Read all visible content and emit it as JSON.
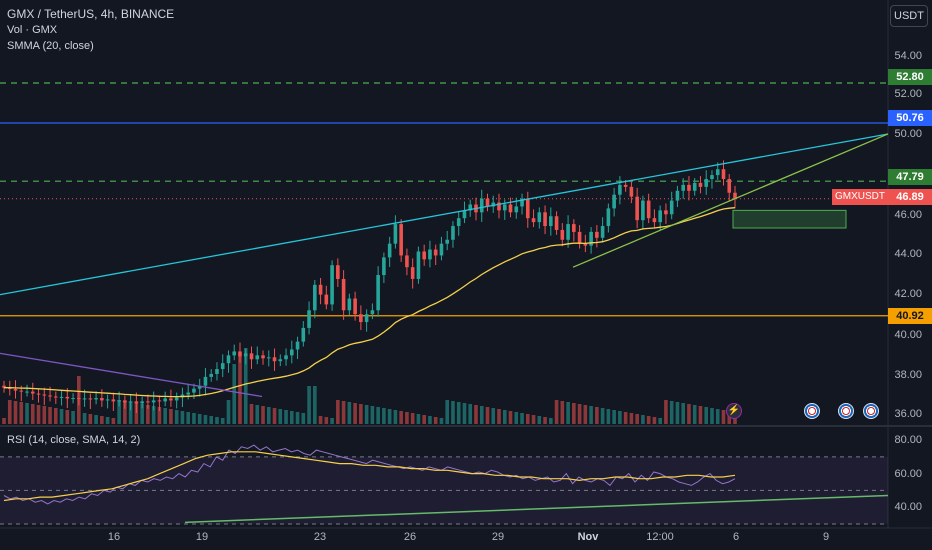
{
  "legend": {
    "symbol": "GMX / TetherUS, 4h, BINANCE",
    "volume": "Vol · GMX",
    "smma": "SMMA (20, close)"
  },
  "rsi_legend": "RSI (14, close, SMA, 14, 2)",
  "unit": "USDT",
  "price_axis": [
    "54.00",
    "52.00",
    "50.00",
    "46.00",
    "44.00",
    "42.00",
    "40.00",
    "38.00",
    "36.00"
  ],
  "rsi_axis": [
    "80.00",
    "60.00",
    "40.00"
  ],
  "time_axis": [
    "16",
    "19",
    "23",
    "26",
    "29",
    "Nov",
    "12:00",
    "6",
    "9"
  ],
  "levels": {
    "green_top": "52.80",
    "blue": "50.76",
    "green_mid": "47.79",
    "orange": "40.92"
  },
  "current": {
    "symbol": "GMXUSDT",
    "price": "46.89"
  },
  "colors": {
    "background": "#131722",
    "up": "#26a69a",
    "down": "#ef5350",
    "blue_level": "#2962ff",
    "orange_level": "#f59f00",
    "green_dash": "#4caf50",
    "cyan_trend": "#26c6da",
    "green_trend": "#8bc34a",
    "smma": "#f5d04c",
    "rsi": "#9575cd"
  },
  "chart_data": {
    "type": "candlestick",
    "price_range": [
      35.6,
      55.2
    ],
    "rsi_range": [
      30,
      86
    ],
    "closes": [
      37.25,
      37.18,
      37.1,
      37.05,
      37.05,
      36.95,
      36.9,
      36.85,
      36.8,
      36.75,
      36.78,
      36.7,
      36.72,
      36.68,
      36.7,
      36.65,
      36.72,
      36.6,
      36.65,
      36.55,
      36.6,
      36.5,
      36.55,
      36.45,
      36.55,
      36.5,
      36.6,
      36.55,
      36.7,
      36.6,
      36.75,
      36.9,
      37.0,
      37.2,
      37.35,
      37.8,
      37.95,
      38.2,
      38.5,
      38.9,
      39.1,
      38.85,
      39.0,
      38.7,
      38.9,
      38.75,
      38.8,
      38.6,
      38.7,
      38.9,
      39.2,
      39.6,
      40.3,
      41.2,
      42.5,
      42.0,
      41.5,
      43.5,
      42.8,
      41.2,
      41.8,
      41.0,
      40.6,
      41.0,
      41.2,
      43.0,
      43.9,
      44.6,
      45.6,
      44.0,
      43.4,
      42.8,
      44.2,
      43.8,
      44.3,
      44.0,
      44.6,
      44.8,
      45.5,
      45.9,
      46.3,
      46.6,
      46.2,
      46.9,
      46.5,
      46.7,
      46.3,
      46.6,
      46.2,
      46.5,
      46.9,
      45.9,
      45.7,
      46.2,
      45.5,
      46.0,
      45.3,
      44.8,
      45.6,
      45.2,
      44.6,
      44.5,
      45.2,
      44.9,
      45.5,
      46.4,
      47.1,
      47.6,
      47.5,
      47.0,
      45.8,
      46.8,
      45.9,
      45.7,
      46.3,
      46.1,
      46.8,
      47.3,
      47.6,
      47.3,
      47.7,
      47.5,
      47.9,
      48.1,
      48.4,
      47.9,
      47.2,
      46.9
    ],
    "rsi": [
      47,
      45,
      46,
      44,
      45,
      43,
      44,
      42,
      44,
      43,
      45,
      44,
      46,
      45,
      48,
      47,
      50,
      49,
      52,
      51,
      54,
      53,
      56,
      55,
      57,
      56,
      58,
      57,
      60,
      58,
      62,
      61,
      66,
      64,
      70,
      68,
      74,
      72,
      76,
      75,
      77,
      74,
      76,
      73,
      74,
      75,
      73,
      74,
      72,
      71,
      74,
      73,
      72,
      71,
      70,
      69,
      68,
      67,
      66,
      68,
      67,
      66,
      65,
      64,
      63,
      64,
      63,
      62,
      64,
      63,
      62,
      64,
      63,
      62,
      61,
      60,
      61,
      60,
      62,
      61,
      59,
      58,
      59,
      57,
      58,
      56,
      57,
      58,
      55,
      56,
      60,
      54,
      58,
      56,
      55,
      57,
      56,
      53,
      58,
      57,
      60,
      55,
      59,
      56,
      61,
      60,
      58,
      57,
      55,
      54,
      53,
      55,
      58,
      60,
      56,
      54,
      55,
      57
    ],
    "rsi_ma": [
      44,
      45,
      45,
      46,
      46,
      47,
      48,
      49,
      50,
      51,
      53,
      55,
      57,
      60,
      63,
      66,
      69,
      71,
      72,
      73,
      73,
      73,
      72,
      71,
      70,
      69,
      68,
      67,
      66,
      66,
      65,
      65,
      64,
      64,
      63,
      63,
      62,
      62,
      61,
      60,
      60,
      59,
      59,
      58,
      58,
      57,
      57,
      57,
      56,
      57,
      57,
      58,
      58,
      57,
      57,
      58,
      58,
      59,
      59,
      58,
      58,
      59
    ]
  }
}
